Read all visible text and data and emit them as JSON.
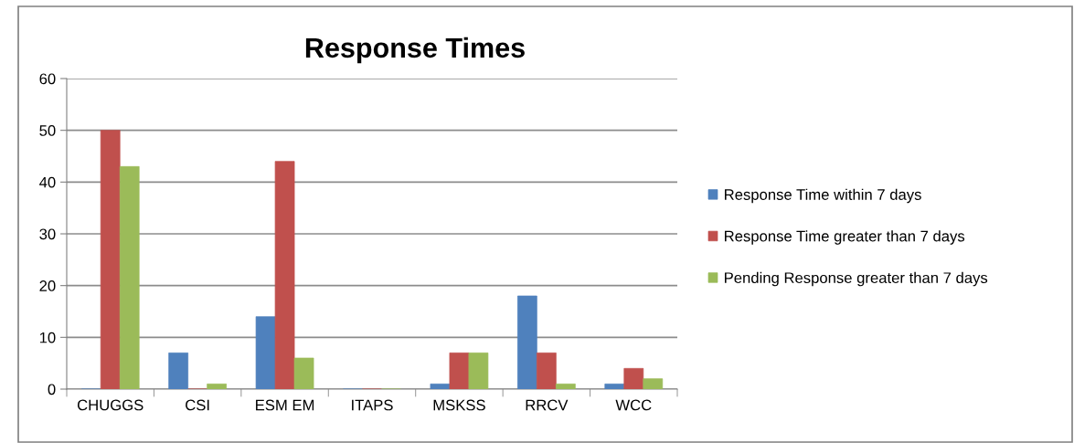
{
  "chart_data": {
    "type": "bar",
    "title": "Response Times",
    "categories": [
      "CHUGGS",
      "CSI",
      "ESM EM",
      "ITAPS",
      "MSKSS",
      "RRCV",
      "WCC"
    ],
    "series": [
      {
        "name": "Response Time within 7 days",
        "color": "#4f81bd",
        "values": [
          0,
          7,
          14,
          0,
          1,
          18,
          1
        ]
      },
      {
        "name": "Response Time greater than 7 days",
        "color": "#c0504d",
        "values": [
          50,
          0,
          44,
          0,
          7,
          7,
          4
        ]
      },
      {
        "name": "Pending Response greater than 7 days",
        "color": "#9bbb59",
        "values": [
          43,
          1,
          6,
          0,
          7,
          1,
          2
        ]
      }
    ],
    "ylim": [
      0,
      60
    ],
    "yticks": [
      0,
      10,
      20,
      30,
      40,
      50,
      60
    ],
    "grid": "y",
    "legend": "right"
  }
}
